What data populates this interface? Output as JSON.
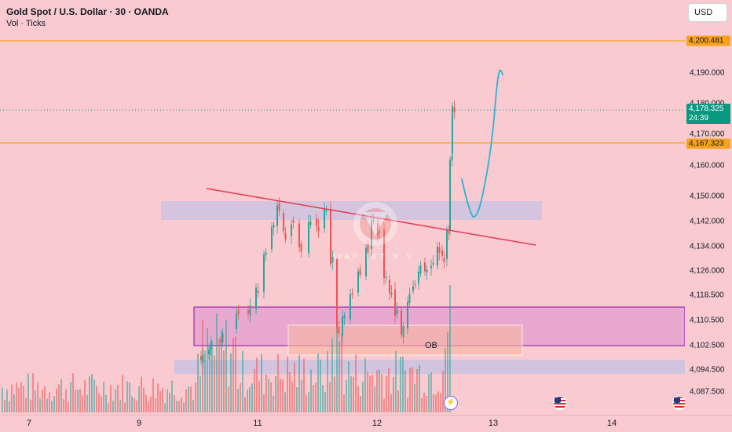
{
  "header": {
    "symbol_line": "Gold Spot / U.S. Dollar · 30 · OANDA",
    "indicator_line": "Vol · Ticks"
  },
  "currency_button": "USD",
  "price_axis": {
    "labels": [
      "4,190.000",
      "4,180.000",
      "4,170.000",
      "4,160.000",
      "4,150.000",
      "4,142.000",
      "4,134.000",
      "4,126.000",
      "4,118.500",
      "4,110.500",
      "4,102.500",
      "4,094.500",
      "4,087.500"
    ],
    "upper_level_tag": "4,200.481",
    "current_price_tag": "4,178.325",
    "countdown": "24:39",
    "lower_level_tag": "4,167.323"
  },
  "time_axis": {
    "labels": [
      "7",
      "9",
      "11",
      "12",
      "13",
      "14"
    ]
  },
  "annotations": {
    "ob_label": "OB",
    "watermark_text": "WAP  IBT X Y"
  },
  "colors": {
    "background": "#f9cbd0",
    "up_candle": "#26a69a",
    "down_candle": "#ef5350",
    "level_line": "#f7a21b",
    "trend_line": "#e53950",
    "projection": "#2bb3d6",
    "zone_purple": "#9c27b0",
    "zone_lavender": "#b8bfe8",
    "zone_peach": "#f7b7a3"
  }
}
